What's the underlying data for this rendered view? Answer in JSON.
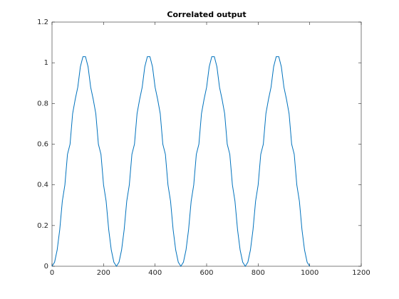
{
  "chart_data": {
    "type": "line",
    "title": "Correlated output",
    "x": [
      0,
      10,
      20,
      30,
      40,
      50,
      60,
      70,
      80,
      90,
      100,
      110,
      120,
      130,
      140,
      150,
      160,
      170,
      180,
      190,
      200,
      210,
      220,
      230,
      240,
      250,
      260,
      270,
      280,
      290,
      300,
      310,
      320,
      330,
      340,
      350,
      360,
      370,
      380,
      390,
      400,
      410,
      420,
      430,
      440,
      450,
      460,
      470,
      480,
      490,
      500,
      510,
      520,
      530,
      540,
      550,
      560,
      570,
      580,
      590,
      600,
      610,
      620,
      630,
      640,
      650,
      660,
      670,
      680,
      690,
      700,
      710,
      720,
      730,
      740,
      750,
      760,
      770,
      780,
      790,
      800,
      810,
      820,
      830,
      840,
      850,
      860,
      870,
      880,
      890,
      900,
      910,
      920,
      930,
      940,
      950,
      960,
      970,
      980,
      990,
      1000
    ],
    "values": [
      0,
      0.02,
      0.08,
      0.18,
      0.32,
      0.4,
      0.55,
      0.6,
      0.75,
      0.82,
      0.88,
      0.98,
      1.03,
      1.03,
      0.98,
      0.88,
      0.82,
      0.75,
      0.6,
      0.55,
      0.4,
      0.32,
      0.18,
      0.08,
      0.02,
      0,
      0.02,
      0.08,
      0.18,
      0.32,
      0.4,
      0.55,
      0.6,
      0.75,
      0.82,
      0.88,
      0.98,
      1.03,
      1.03,
      0.98,
      0.88,
      0.82,
      0.75,
      0.6,
      0.55,
      0.4,
      0.32,
      0.18,
      0.08,
      0.02,
      0,
      0.02,
      0.08,
      0.18,
      0.32,
      0.4,
      0.55,
      0.6,
      0.75,
      0.82,
      0.88,
      0.98,
      1.03,
      1.03,
      0.98,
      0.88,
      0.82,
      0.75,
      0.6,
      0.55,
      0.4,
      0.32,
      0.18,
      0.08,
      0.02,
      0,
      0.02,
      0.08,
      0.18,
      0.32,
      0.4,
      0.55,
      0.6,
      0.75,
      0.82,
      0.88,
      0.98,
      1.03,
      1.03,
      0.98,
      0.88,
      0.82,
      0.75,
      0.6,
      0.55,
      0.4,
      0.32,
      0.18,
      0.08,
      0.02,
      0
    ],
    "color": "#0072bd",
    "xlim": [
      0,
      1200
    ],
    "xticks": [
      0,
      200,
      400,
      600,
      800,
      1000,
      1200
    ],
    "ylim": [
      0,
      1.2
    ],
    "yticks": [
      0,
      0.2,
      0.4,
      0.6,
      0.8,
      1,
      1.2
    ]
  }
}
